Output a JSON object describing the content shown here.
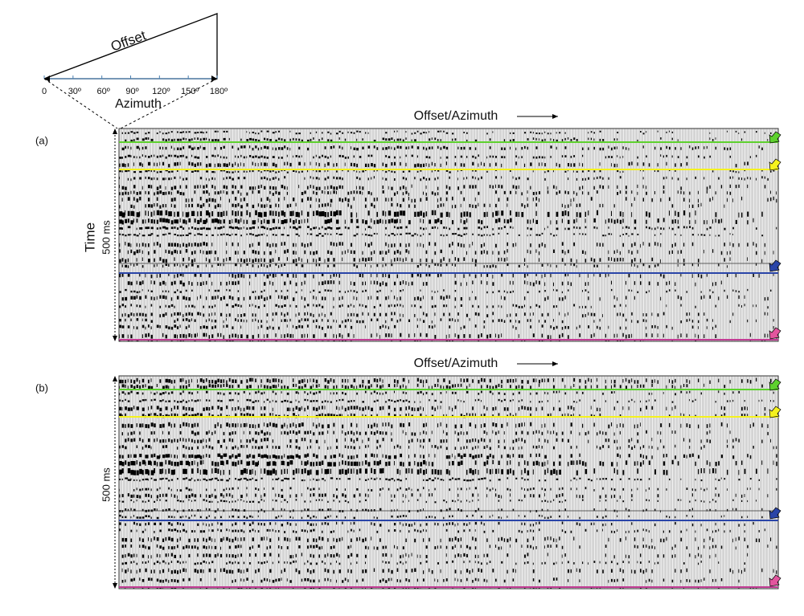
{
  "diagram": {
    "offset_label": "Offset",
    "azimuth_ticks": [
      "0",
      "30º",
      "60º",
      "90º",
      "120º",
      "150º",
      "180º"
    ],
    "azimuth_label": "Azimuth"
  },
  "panels": [
    {
      "label": "(a)",
      "x_label": "Offset/Azimuth",
      "y_label": "Time",
      "scale_label": "500 ms"
    },
    {
      "label": "(b)",
      "x_label": "Offset/Azimuth",
      "scale_label": "500 ms"
    }
  ]
}
